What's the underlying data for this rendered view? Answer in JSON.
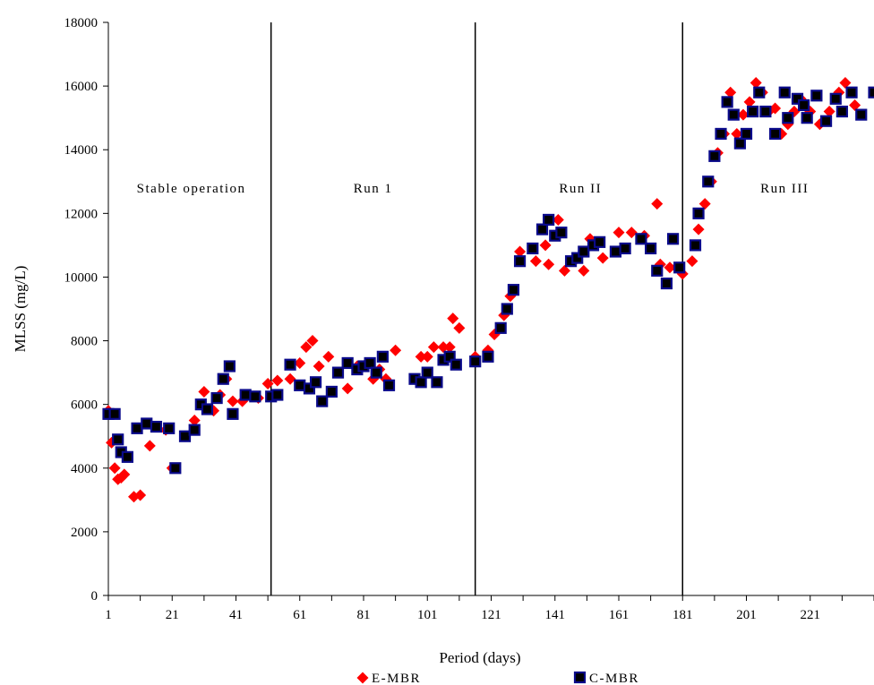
{
  "chart_data": {
    "type": "scatter",
    "xlabel": "Period (days)",
    "ylabel": "MLSS (mg/L)",
    "xlim": [
      1,
      241
    ],
    "ylim": [
      0,
      18000
    ],
    "x_ticks": [
      1,
      21,
      41,
      61,
      81,
      101,
      121,
      141,
      161,
      181,
      201,
      221
    ],
    "y_ticks": [
      0,
      2000,
      4000,
      6000,
      8000,
      10000,
      12000,
      14000,
      16000,
      18000
    ],
    "grid": false,
    "legend_position": "bottom-center",
    "phase_dividers": [
      52,
      116,
      181
    ],
    "phase_labels": [
      {
        "text": "Stable operation",
        "x": 27,
        "y": 12800
      },
      {
        "text": "Run 1",
        "x": 84,
        "y": 12800
      },
      {
        "text": "Run II",
        "x": 149,
        "y": 12800
      },
      {
        "text": "Run III",
        "x": 213,
        "y": 12800
      }
    ],
    "series": [
      {
        "name": "E-MBR",
        "color": "#ff0000",
        "marker": "diamond",
        "points": [
          [
            1,
            5800
          ],
          [
            2,
            4800
          ],
          [
            3,
            4000
          ],
          [
            4,
            3650
          ],
          [
            5,
            3700
          ],
          [
            6,
            3800
          ],
          [
            9,
            3100
          ],
          [
            11,
            3150
          ],
          [
            14,
            4700
          ],
          [
            19,
            5200
          ],
          [
            21,
            4000
          ],
          [
            25,
            5000
          ],
          [
            28,
            5500
          ],
          [
            31,
            6400
          ],
          [
            34,
            5800
          ],
          [
            36,
            6300
          ],
          [
            38,
            6800
          ],
          [
            40,
            6100
          ],
          [
            43,
            6100
          ],
          [
            48,
            6200
          ],
          [
            51,
            6650
          ],
          [
            54,
            6750
          ],
          [
            58,
            6800
          ],
          [
            61,
            7300
          ],
          [
            63,
            7800
          ],
          [
            65,
            8000
          ],
          [
            67,
            7200
          ],
          [
            70,
            7500
          ],
          [
            73,
            7000
          ],
          [
            76,
            6500
          ],
          [
            79,
            7200
          ],
          [
            82,
            7300
          ],
          [
            84,
            6800
          ],
          [
            86,
            7100
          ],
          [
            88,
            6800
          ],
          [
            91,
            7700
          ],
          [
            99,
            7500
          ],
          [
            101,
            7500
          ],
          [
            103,
            7800
          ],
          [
            106,
            7800
          ],
          [
            108,
            7800
          ],
          [
            109,
            8700
          ],
          [
            111,
            8400
          ],
          [
            116,
            7500
          ],
          [
            120,
            7700
          ],
          [
            122,
            8200
          ],
          [
            125,
            8800
          ],
          [
            127,
            9400
          ],
          [
            130,
            10800
          ],
          [
            135,
            10500
          ],
          [
            138,
            11000
          ],
          [
            139,
            10400
          ],
          [
            142,
            11800
          ],
          [
            144,
            10200
          ],
          [
            147,
            10500
          ],
          [
            150,
            10200
          ],
          [
            152,
            11200
          ],
          [
            156,
            10600
          ],
          [
            161,
            11400
          ],
          [
            165,
            11400
          ],
          [
            169,
            11300
          ],
          [
            173,
            12300
          ],
          [
            174,
            10400
          ],
          [
            177,
            10300
          ],
          [
            179,
            10300
          ],
          [
            181,
            10100
          ],
          [
            184,
            10500
          ],
          [
            186,
            11500
          ],
          [
            188,
            12300
          ],
          [
            190,
            13000
          ],
          [
            192,
            13900
          ],
          [
            194,
            14500
          ],
          [
            196,
            15800
          ],
          [
            198,
            14500
          ],
          [
            200,
            15100
          ],
          [
            202,
            15500
          ],
          [
            204,
            16100
          ],
          [
            206,
            15800
          ],
          [
            208,
            15200
          ],
          [
            210,
            15300
          ],
          [
            212,
            14500
          ],
          [
            214,
            14800
          ],
          [
            216,
            15200
          ],
          [
            218,
            15600
          ],
          [
            221,
            15200
          ],
          [
            224,
            14800
          ],
          [
            227,
            15200
          ],
          [
            230,
            15800
          ],
          [
            232,
            16100
          ],
          [
            235,
            15400
          ]
        ]
      },
      {
        "name": "C-MBR",
        "color": "#0a0a8a",
        "marker": "square",
        "points": [
          [
            1,
            5700
          ],
          [
            3,
            5700
          ],
          [
            4,
            4900
          ],
          [
            5,
            4500
          ],
          [
            7,
            4350
          ],
          [
            10,
            5250
          ],
          [
            13,
            5400
          ],
          [
            16,
            5300
          ],
          [
            20,
            5250
          ],
          [
            22,
            4000
          ],
          [
            25,
            5000
          ],
          [
            28,
            5200
          ],
          [
            30,
            6000
          ],
          [
            32,
            5850
          ],
          [
            35,
            6200
          ],
          [
            37,
            6800
          ],
          [
            39,
            7200
          ],
          [
            40,
            5700
          ],
          [
            44,
            6300
          ],
          [
            47,
            6250
          ],
          [
            52,
            6250
          ],
          [
            54,
            6300
          ],
          [
            58,
            7250
          ],
          [
            61,
            6600
          ],
          [
            64,
            6500
          ],
          [
            66,
            6700
          ],
          [
            68,
            6100
          ],
          [
            71,
            6400
          ],
          [
            73,
            7000
          ],
          [
            76,
            7300
          ],
          [
            79,
            7100
          ],
          [
            81,
            7200
          ],
          [
            83,
            7300
          ],
          [
            85,
            7000
          ],
          [
            87,
            7500
          ],
          [
            89,
            6600
          ],
          [
            97,
            6800
          ],
          [
            99,
            6700
          ],
          [
            101,
            7000
          ],
          [
            104,
            6700
          ],
          [
            106,
            7400
          ],
          [
            108,
            7500
          ],
          [
            110,
            7250
          ],
          [
            116,
            7350
          ],
          [
            120,
            7500
          ],
          [
            124,
            8400
          ],
          [
            126,
            9000
          ],
          [
            128,
            9600
          ],
          [
            130,
            10500
          ],
          [
            134,
            10900
          ],
          [
            137,
            11500
          ],
          [
            139,
            11800
          ],
          [
            141,
            11300
          ],
          [
            143,
            11400
          ],
          [
            146,
            10500
          ],
          [
            148,
            10600
          ],
          [
            150,
            10800
          ],
          [
            153,
            11000
          ],
          [
            155,
            11100
          ],
          [
            160,
            10800
          ],
          [
            163,
            10900
          ],
          [
            168,
            11200
          ],
          [
            171,
            10900
          ],
          [
            173,
            10200
          ],
          [
            176,
            9800
          ],
          [
            178,
            11200
          ],
          [
            180,
            10300
          ],
          [
            185,
            11000
          ],
          [
            186,
            12000
          ],
          [
            189,
            13000
          ],
          [
            191,
            13800
          ],
          [
            193,
            14500
          ],
          [
            195,
            15500
          ],
          [
            197,
            15100
          ],
          [
            199,
            14200
          ],
          [
            201,
            14500
          ],
          [
            203,
            15200
          ],
          [
            205,
            15800
          ],
          [
            207,
            15200
          ],
          [
            210,
            14500
          ],
          [
            213,
            15800
          ],
          [
            214,
            15000
          ],
          [
            217,
            15600
          ],
          [
            219,
            15400
          ],
          [
            220,
            15000
          ],
          [
            223,
            15700
          ],
          [
            226,
            14900
          ],
          [
            229,
            15600
          ],
          [
            231,
            15200
          ],
          [
            234,
            15800
          ],
          [
            237,
            15100
          ],
          [
            241,
            15800
          ]
        ]
      }
    ]
  }
}
